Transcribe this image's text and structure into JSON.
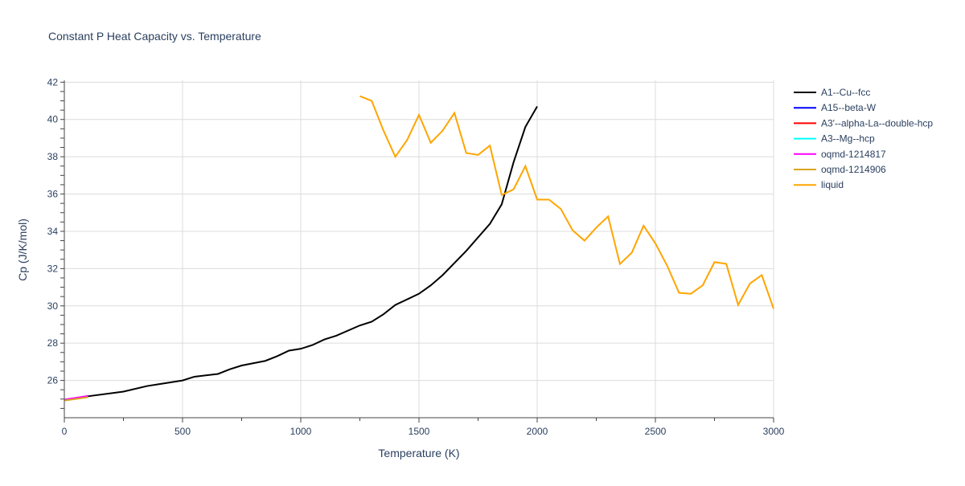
{
  "chart_data": {
    "type": "line",
    "title": "Constant P Heat Capacity vs. Temperature",
    "xlabel": "Temperature (K)",
    "ylabel": "Cp (J/K/mol)",
    "xlim": [
      0,
      3000
    ],
    "ylim": [
      24,
      42.1
    ],
    "xticks": [
      0,
      500,
      1000,
      1500,
      2000,
      2500,
      3000
    ],
    "yticks": [
      26,
      28,
      30,
      32,
      34,
      36,
      38,
      40,
      42
    ],
    "grid": true,
    "legend_placement": "right",
    "series": [
      {
        "name": "A1--Cu--fcc",
        "color": "#000000",
        "x": [
          0,
          100,
          250,
          350,
          400,
          500,
          550,
          650,
          700,
          750,
          850,
          900,
          950,
          1000,
          1050,
          1100,
          1150,
          1250,
          1300,
          1350,
          1400,
          1500,
          1550,
          1600,
          1700,
          1800,
          1850,
          1900,
          1950,
          2000
        ],
        "y": [
          24.95,
          25.15,
          25.4,
          25.7,
          25.8,
          26.0,
          26.2,
          26.35,
          26.6,
          26.8,
          27.05,
          27.3,
          27.6,
          27.7,
          27.9,
          28.2,
          28.4,
          28.95,
          29.15,
          29.55,
          30.05,
          30.65,
          31.1,
          31.65,
          32.95,
          34.4,
          35.45,
          37.7,
          39.6,
          40.7
        ]
      },
      {
        "name": "A15--beta-W",
        "color": "#0000ff",
        "x": [
          0,
          100
        ],
        "y": [
          24.95,
          25.15
        ]
      },
      {
        "name": "A3'--alpha-La--double-hcp",
        "color": "#ff0000",
        "x": [
          0,
          100
        ],
        "y": [
          24.95,
          25.15
        ]
      },
      {
        "name": "A3--Mg--hcp",
        "color": "#00ffff",
        "x": [
          0,
          100
        ],
        "y": [
          24.95,
          25.15
        ]
      },
      {
        "name": "oqmd-1214817",
        "color": "#ff00ff",
        "x": [
          0,
          100
        ],
        "y": [
          24.97,
          25.17
        ]
      },
      {
        "name": "oqmd-1214906",
        "color": "#daa520",
        "x": [
          0,
          100
        ],
        "y": [
          24.92,
          25.1
        ]
      },
      {
        "name": "liquid",
        "color": "#ffa500",
        "x": [
          1250,
          1300,
          1350,
          1400,
          1450,
          1500,
          1550,
          1600,
          1650,
          1700,
          1750,
          1800,
          1850,
          1900,
          1950,
          2000,
          2050,
          2100,
          2150,
          2200,
          2250,
          2300,
          2350,
          2400,
          2450,
          2500,
          2550,
          2600,
          2650,
          2700,
          2750,
          2800,
          2850,
          2900,
          2950,
          3000
        ],
        "y": [
          41.25,
          41.0,
          39.4,
          38.0,
          38.9,
          40.25,
          38.75,
          39.4,
          40.35,
          38.2,
          38.1,
          38.6,
          35.95,
          36.25,
          37.5,
          35.7,
          35.7,
          35.2,
          34.05,
          33.5,
          34.2,
          34.8,
          32.25,
          32.85,
          34.3,
          33.35,
          32.15,
          30.7,
          30.65,
          31.1,
          32.35,
          32.25,
          30.05,
          31.2,
          31.65,
          29.85
        ]
      }
    ]
  }
}
